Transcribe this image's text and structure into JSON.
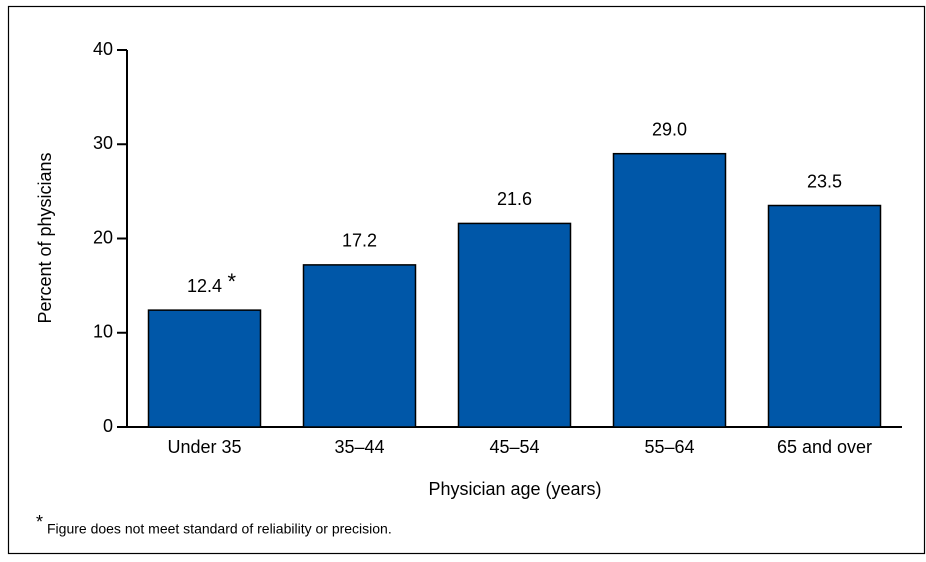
{
  "chart_data": {
    "type": "bar",
    "categories": [
      "Under 35",
      "35–44",
      "45–54",
      "55–64",
      "65 and over"
    ],
    "values": [
      12.4,
      17.2,
      21.6,
      29.0,
      23.5
    ],
    "value_labels": [
      "12.4",
      "17.2",
      "21.6",
      "29.0",
      "23.5"
    ],
    "color": "#0057a8",
    "xlabel": "Physician age (years)",
    "ylabel": "Percent of physicians",
    "ylim": [
      0,
      40
    ],
    "yticks": [
      0,
      10,
      20,
      30,
      40
    ],
    "grid": false,
    "footnote_marker": "*",
    "footnote": "Figure does not meet standard of reliability or precision."
  }
}
